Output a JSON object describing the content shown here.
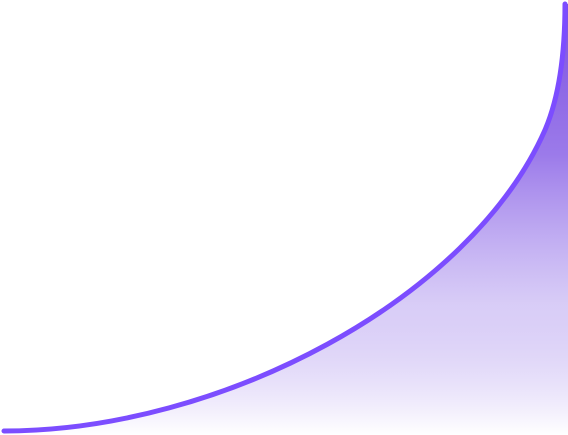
{
  "graphic": {
    "kind": "decorative-curve",
    "stroke_color": "#7c4dff",
    "fill_gradient": {
      "top_color": "#7b4fe0",
      "bottom_color": "#ffffff"
    },
    "background_color": "#ffffff"
  }
}
